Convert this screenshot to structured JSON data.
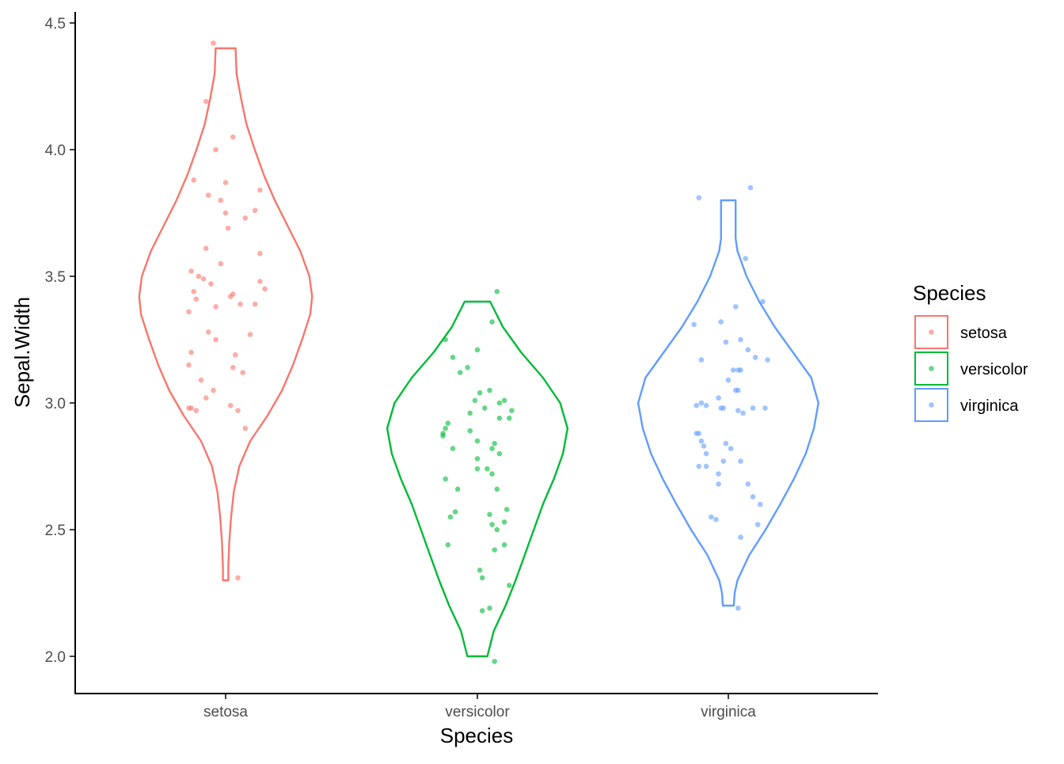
{
  "chart_data": {
    "type": "violin",
    "xlabel": "Species",
    "ylabel": "Sepal.Width",
    "ylim": [
      1.92,
      4.55
    ],
    "yticks": [
      2.0,
      2.5,
      3.0,
      3.5,
      4.0,
      4.5
    ],
    "ytick_labels": [
      "2.0",
      "2.5",
      "3.0",
      "3.5",
      "4.0",
      "4.5"
    ],
    "categories": [
      "setosa",
      "versicolor",
      "virginica"
    ],
    "grid": false,
    "legend": {
      "title": "Species",
      "position": "right",
      "entries": [
        "setosa",
        "versicolor",
        "virginica"
      ]
    },
    "colors": {
      "setosa": "#F8766D",
      "versicolor": "#00BA38",
      "virginica": "#619CFF",
      "axis": "#000000",
      "text": "#4D4D4D"
    },
    "series": [
      {
        "name": "setosa",
        "violin": {
          "y": [
            2.3,
            2.35,
            2.45,
            2.55,
            2.65,
            2.75,
            2.85,
            2.95,
            3.05,
            3.15,
            3.25,
            3.35,
            3.42,
            3.5,
            3.6,
            3.7,
            3.8,
            3.9,
            4.0,
            4.1,
            4.2,
            4.3,
            4.4
          ],
          "width": [
            0.03,
            0.03,
            0.04,
            0.06,
            0.09,
            0.15,
            0.27,
            0.46,
            0.62,
            0.74,
            0.84,
            0.93,
            0.95,
            0.92,
            0.82,
            0.68,
            0.54,
            0.42,
            0.32,
            0.23,
            0.17,
            0.12,
            0.11
          ]
        },
        "points": [
          [
            -0.05,
            4.42
          ],
          [
            -0.08,
            4.19
          ],
          [
            0.03,
            4.05
          ],
          [
            -0.04,
            4.0
          ],
          [
            -0.13,
            3.88
          ],
          [
            0.0,
            3.87
          ],
          [
            0.14,
            3.84
          ],
          [
            -0.07,
            3.82
          ],
          [
            -0.02,
            3.8
          ],
          [
            0.08,
            3.73
          ],
          [
            0.0,
            3.75
          ],
          [
            0.12,
            3.76
          ],
          [
            0.01,
            3.69
          ],
          [
            -0.08,
            3.61
          ],
          [
            0.14,
            3.59
          ],
          [
            -0.02,
            3.55
          ],
          [
            -0.14,
            3.52
          ],
          [
            -0.11,
            3.5
          ],
          [
            -0.09,
            3.49
          ],
          [
            0.14,
            3.48
          ],
          [
            -0.06,
            3.47
          ],
          [
            0.16,
            3.45
          ],
          [
            -0.13,
            3.44
          ],
          [
            -0.12,
            3.41
          ],
          [
            0.02,
            3.42
          ],
          [
            0.03,
            3.43
          ],
          [
            0.12,
            3.39
          ],
          [
            0.06,
            3.39
          ],
          [
            -0.04,
            3.38
          ],
          [
            -0.15,
            3.36
          ],
          [
            -0.07,
            3.28
          ],
          [
            0.1,
            3.27
          ],
          [
            -0.04,
            3.25
          ],
          [
            -0.14,
            3.2
          ],
          [
            0.04,
            3.19
          ],
          [
            -0.15,
            3.15
          ],
          [
            0.03,
            3.14
          ],
          [
            0.07,
            3.12
          ],
          [
            -0.1,
            3.09
          ],
          [
            -0.05,
            3.05
          ],
          [
            -0.08,
            3.02
          ],
          [
            -0.14,
            2.98
          ],
          [
            0.02,
            2.99
          ],
          [
            -0.15,
            2.98
          ],
          [
            -0.12,
            2.97
          ],
          [
            0.05,
            2.97
          ],
          [
            0.08,
            2.9
          ],
          [
            0.05,
            2.31
          ]
        ]
      },
      {
        "name": "versicolor",
        "violin": {
          "y": [
            2.0,
            2.1,
            2.2,
            2.3,
            2.4,
            2.5,
            2.6,
            2.7,
            2.8,
            2.9,
            3.0,
            3.1,
            3.2,
            3.3,
            3.4
          ],
          "width": [
            0.11,
            0.18,
            0.31,
            0.42,
            0.52,
            0.62,
            0.72,
            0.84,
            0.94,
            0.99,
            0.91,
            0.72,
            0.48,
            0.28,
            0.14
          ]
        },
        "points": [
          [
            0.08,
            3.44
          ],
          [
            0.06,
            3.32
          ],
          [
            -0.13,
            3.25
          ],
          [
            -0.1,
            3.18
          ],
          [
            0.0,
            3.21
          ],
          [
            -0.04,
            3.14
          ],
          [
            -0.07,
            3.12
          ],
          [
            0.05,
            3.05
          ],
          [
            0.01,
            3.04
          ],
          [
            0.09,
            3.0
          ],
          [
            -0.01,
            3.01
          ],
          [
            0.11,
            3.01
          ],
          [
            0.03,
            2.98
          ],
          [
            0.14,
            2.97
          ],
          [
            -0.03,
            2.96
          ],
          [
            0.09,
            2.94
          ],
          [
            0.13,
            2.94
          ],
          [
            -0.12,
            2.92
          ],
          [
            -0.13,
            2.9
          ],
          [
            -0.14,
            2.88
          ],
          [
            -0.03,
            2.89
          ],
          [
            -0.14,
            2.87
          ],
          [
            0.0,
            2.85
          ],
          [
            0.07,
            2.84
          ],
          [
            -0.1,
            2.82
          ],
          [
            0.06,
            2.82
          ],
          [
            0.09,
            2.8
          ],
          [
            0.0,
            2.78
          ],
          [
            0.0,
            2.74
          ],
          [
            -0.13,
            2.7
          ],
          [
            0.04,
            2.74
          ],
          [
            0.06,
            2.72
          ],
          [
            0.08,
            2.66
          ],
          [
            -0.08,
            2.66
          ],
          [
            0.12,
            2.58
          ],
          [
            -0.09,
            2.57
          ],
          [
            -0.11,
            2.55
          ],
          [
            0.05,
            2.56
          ],
          [
            0.06,
            2.52
          ],
          [
            0.11,
            2.53
          ],
          [
            0.08,
            2.5
          ],
          [
            -0.12,
            2.44
          ],
          [
            0.11,
            2.44
          ],
          [
            0.07,
            2.42
          ],
          [
            0.01,
            2.34
          ],
          [
            0.02,
            2.31
          ],
          [
            0.13,
            2.28
          ],
          [
            0.02,
            2.18
          ],
          [
            0.05,
            2.19
          ],
          [
            0.07,
            1.98
          ]
        ]
      },
      {
        "name": "virginica",
        "violin": {
          "y": [
            2.2,
            2.25,
            2.3,
            2.4,
            2.5,
            2.6,
            2.7,
            2.8,
            2.9,
            3.0,
            3.1,
            3.2,
            3.3,
            3.4,
            3.5,
            3.6,
            3.65,
            3.7,
            3.8
          ],
          "width": [
            0.06,
            0.07,
            0.1,
            0.23,
            0.41,
            0.57,
            0.72,
            0.85,
            0.94,
            0.99,
            0.91,
            0.71,
            0.51,
            0.34,
            0.2,
            0.1,
            0.08,
            0.08,
            0.08
          ]
        },
        "points": [
          [
            -0.12,
            3.81
          ],
          [
            0.09,
            3.85
          ],
          [
            0.07,
            3.57
          ],
          [
            0.14,
            3.4
          ],
          [
            0.03,
            3.38
          ],
          [
            -0.14,
            3.31
          ],
          [
            -0.03,
            3.32
          ],
          [
            0.05,
            3.25
          ],
          [
            -0.01,
            3.24
          ],
          [
            0.08,
            3.21
          ],
          [
            0.11,
            3.18
          ],
          [
            0.16,
            3.17
          ],
          [
            -0.11,
            3.17
          ],
          [
            0.04,
            3.13
          ],
          [
            0.05,
            3.13
          ],
          [
            0.02,
            3.13
          ],
          [
            0.0,
            3.09
          ],
          [
            0.03,
            3.05
          ],
          [
            0.04,
            3.05
          ],
          [
            -0.04,
            3.02
          ],
          [
            -0.11,
            3.0
          ],
          [
            -0.13,
            2.99
          ],
          [
            -0.09,
            2.99
          ],
          [
            -0.03,
            2.98
          ],
          [
            -0.02,
            2.98
          ],
          [
            0.04,
            2.97
          ],
          [
            0.06,
            2.96
          ],
          [
            0.1,
            2.98
          ],
          [
            0.15,
            2.98
          ],
          [
            -0.13,
            2.88
          ],
          [
            -0.12,
            2.88
          ],
          [
            -0.11,
            2.85
          ],
          [
            -0.01,
            2.84
          ],
          [
            -0.1,
            2.83
          ],
          [
            0.01,
            2.82
          ],
          [
            -0.09,
            2.8
          ],
          [
            -0.02,
            2.77
          ],
          [
            0.05,
            2.77
          ],
          [
            -0.12,
            2.75
          ],
          [
            -0.09,
            2.75
          ],
          [
            -0.04,
            2.72
          ],
          [
            -0.04,
            2.68
          ],
          [
            0.08,
            2.68
          ],
          [
            0.1,
            2.63
          ],
          [
            0.13,
            2.6
          ],
          [
            0.12,
            2.52
          ],
          [
            -0.07,
            2.55
          ],
          [
            -0.05,
            2.54
          ],
          [
            0.05,
            2.47
          ],
          [
            0.04,
            2.19
          ]
        ]
      }
    ]
  }
}
